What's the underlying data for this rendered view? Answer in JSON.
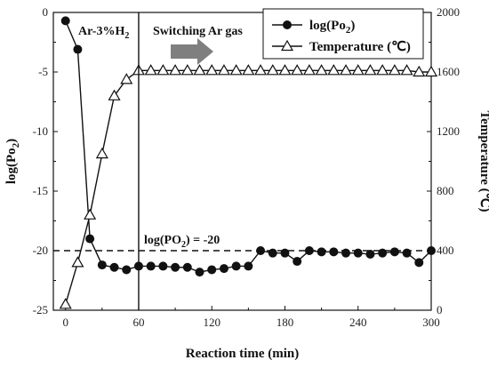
{
  "chart_data": {
    "type": "line",
    "xlabel": "Reaction time (min)",
    "ylabel_left": "log(Po2)",
    "ylabel_right": "Temperature (℃)",
    "xlim": [
      -10,
      300
    ],
    "ylim_left": [
      -25,
      0
    ],
    "ylim_right": [
      0,
      2000
    ],
    "x_ticks": [
      0,
      60,
      120,
      180,
      240,
      300
    ],
    "y_left_ticks": [
      0,
      -5,
      -10,
      -15,
      -20,
      -25
    ],
    "y_right_ticks": [
      0,
      400,
      800,
      1200,
      1600,
      2000
    ],
    "annotations": {
      "region_label": "Ar-3%H2",
      "switch_label": "Switching Ar gas",
      "threshold_label": "log(PO2) = -20",
      "switch_time": 60,
      "threshold_value": -20
    },
    "legend": {
      "placement": "top-right",
      "entries": [
        "log(Po2)",
        "Temperature (℃)"
      ]
    },
    "series": [
      {
        "name": "log(Po2)",
        "axis": "left",
        "marker": "filled-circle",
        "x": [
          0,
          10,
          20,
          30,
          40,
          50,
          60,
          70,
          80,
          90,
          100,
          110,
          120,
          130,
          140,
          150,
          160,
          170,
          180,
          190,
          200,
          210,
          220,
          230,
          240,
          250,
          260,
          270,
          280,
          290,
          300
        ],
        "y": [
          -0.7,
          -3.1,
          -19.0,
          -21.2,
          -21.4,
          -21.6,
          -21.3,
          -21.3,
          -21.3,
          -21.4,
          -21.4,
          -21.8,
          -21.6,
          -21.5,
          -21.3,
          -21.3,
          -20.0,
          -20.2,
          -20.2,
          -20.9,
          -20.0,
          -20.1,
          -20.1,
          -20.2,
          -20.2,
          -20.3,
          -20.2,
          -20.1,
          -20.2,
          -21.0,
          -20.0
        ]
      },
      {
        "name": "Temperature (℃)",
        "axis": "right",
        "marker": "open-triangle",
        "x": [
          0,
          10,
          20,
          30,
          40,
          50,
          60,
          70,
          80,
          90,
          100,
          110,
          120,
          130,
          140,
          150,
          160,
          170,
          180,
          190,
          200,
          210,
          220,
          230,
          240,
          250,
          260,
          270,
          280,
          290,
          300
        ],
        "y": [
          40,
          320,
          640,
          1050,
          1440,
          1550,
          1610,
          1610,
          1610,
          1610,
          1610,
          1610,
          1610,
          1610,
          1610,
          1610,
          1610,
          1610,
          1610,
          1610,
          1610,
          1610,
          1610,
          1610,
          1610,
          1610,
          1610,
          1610,
          1610,
          1600,
          1600
        ]
      }
    ]
  }
}
